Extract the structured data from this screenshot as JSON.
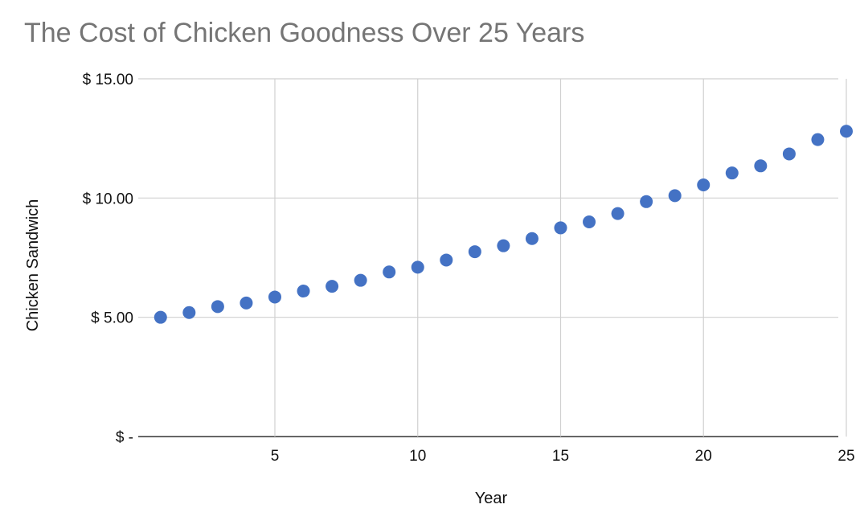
{
  "chart_data": {
    "type": "scatter",
    "title": "The Cost of Chicken Goodness Over 25 Years",
    "xlabel": "Year",
    "ylabel": "Chicken Sandwich",
    "xlim": [
      0.5,
      25
    ],
    "ylim": [
      0,
      15
    ],
    "x_ticks": [
      5,
      10,
      15,
      20,
      25
    ],
    "y_ticks": [
      {
        "value": 0,
        "label": "$ -"
      },
      {
        "value": 5,
        "label": "$ 5.00"
      },
      {
        "value": 10,
        "label": "$ 10.00"
      },
      {
        "value": 15,
        "label": "$ 15.00"
      }
    ],
    "grid": true,
    "marker_color": "#4472c4",
    "points": [
      {
        "x": 1,
        "y": 5.0
      },
      {
        "x": 2,
        "y": 5.2
      },
      {
        "x": 3,
        "y": 5.45
      },
      {
        "x": 4,
        "y": 5.6
      },
      {
        "x": 5,
        "y": 5.85
      },
      {
        "x": 6,
        "y": 6.1
      },
      {
        "x": 7,
        "y": 6.3
      },
      {
        "x": 8,
        "y": 6.55
      },
      {
        "x": 9,
        "y": 6.9
      },
      {
        "x": 10,
        "y": 7.1
      },
      {
        "x": 11,
        "y": 7.4
      },
      {
        "x": 12,
        "y": 7.75
      },
      {
        "x": 13,
        "y": 8.0
      },
      {
        "x": 14,
        "y": 8.3
      },
      {
        "x": 15,
        "y": 8.75
      },
      {
        "x": 16,
        "y": 9.0
      },
      {
        "x": 17,
        "y": 9.35
      },
      {
        "x": 18,
        "y": 9.85
      },
      {
        "x": 19,
        "y": 10.1
      },
      {
        "x": 20,
        "y": 10.55
      },
      {
        "x": 21,
        "y": 11.05
      },
      {
        "x": 22,
        "y": 11.35
      },
      {
        "x": 23,
        "y": 11.85
      },
      {
        "x": 24,
        "y": 12.45
      },
      {
        "x": 25,
        "y": 12.8
      }
    ]
  }
}
